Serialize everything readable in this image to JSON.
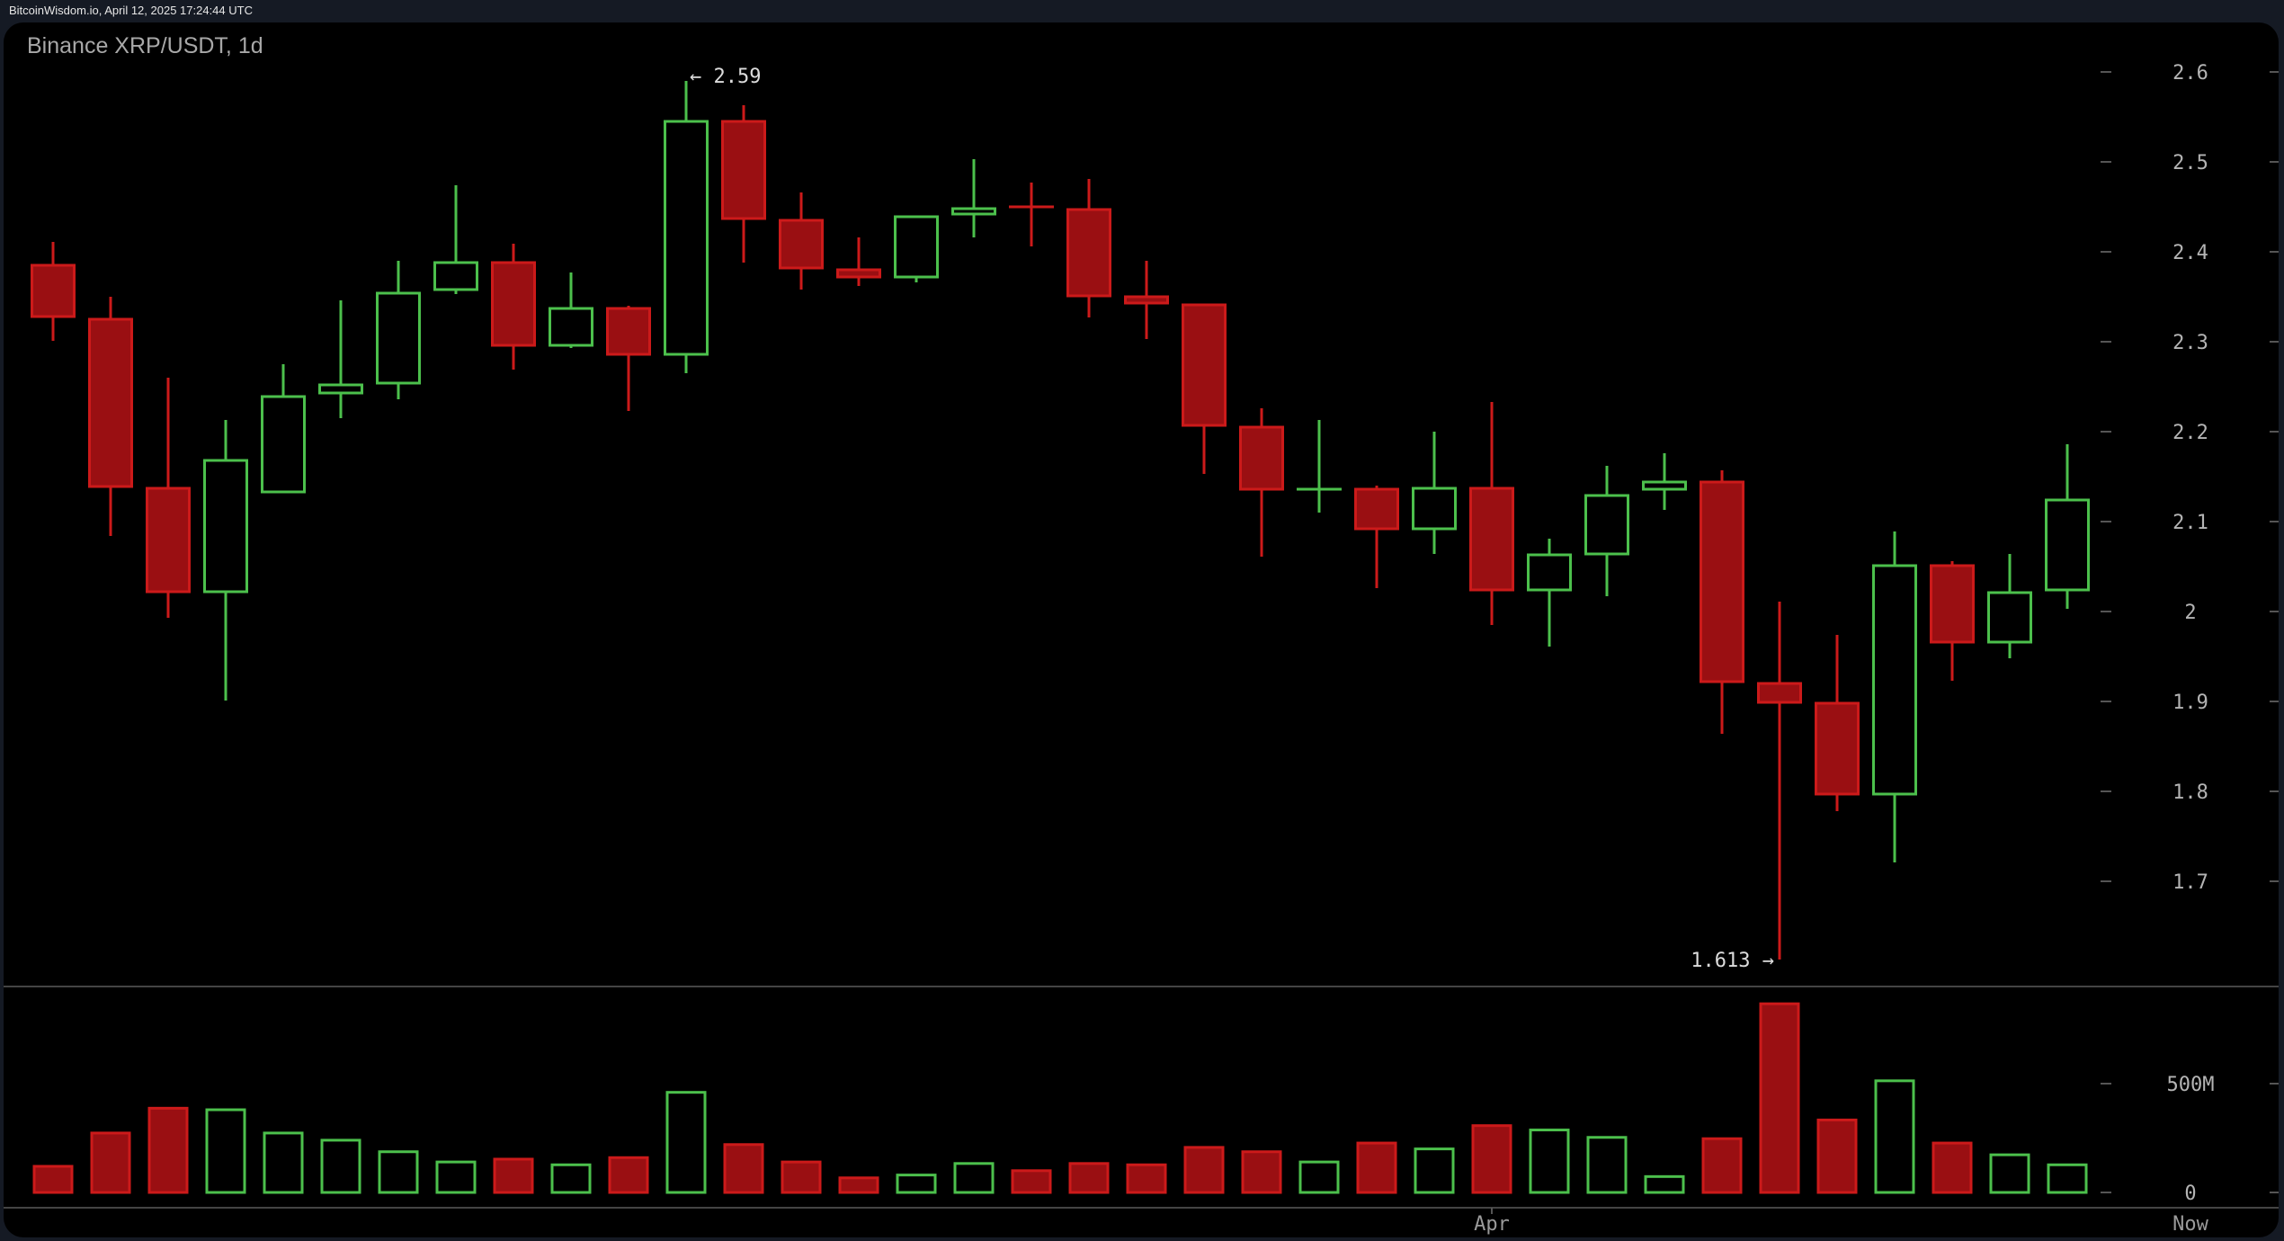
{
  "header": {
    "source_text": "BitcoinWisdom.io, April 12, 2025 17:24:44 UTC",
    "chart_title": "Binance XRP/USDT, 1d"
  },
  "colors": {
    "up": "#4cc04c",
    "down_fill": "#9a0f12",
    "down_stroke": "#cc1a1a",
    "axis_text": "#b4b4b4",
    "gridline": "#444444",
    "background": "#000000",
    "frame": "#151a24"
  },
  "annotations": {
    "high_label": "← 2.59",
    "low_label": "1.613 →"
  },
  "x_axis": {
    "labels": [
      {
        "text": "Apr",
        "candle_index": 25
      },
      {
        "text": "Now",
        "candle_index": 36
      }
    ]
  },
  "chart_data": {
    "type": "candlestick",
    "title": "Binance XRP/USDT, 1d",
    "xlabel": "",
    "ylabel": "",
    "ylim": [
      1.6,
      2.65
    ],
    "y_ticks": [
      "2.6",
      "2.5",
      "2.4",
      "2.3",
      "2.2",
      "2.1",
      "2",
      "1.9",
      "1.8",
      "1.7"
    ],
    "volume_ticks": [
      "500M",
      "0"
    ],
    "x_tick_labels": [
      "Apr",
      "Now"
    ],
    "annotations": [
      {
        "text": "← 2.59",
        "value": 2.59,
        "candle_index": 11
      },
      {
        "text": "1.613 →",
        "value": 1.613,
        "candle_index": 30
      }
    ],
    "candles": [
      {
        "o": 2.385,
        "h": 2.411,
        "l": 2.301,
        "c": 2.328
      },
      {
        "o": 2.325,
        "h": 2.35,
        "l": 2.084,
        "c": 2.139
      },
      {
        "o": 2.137,
        "h": 2.26,
        "l": 1.993,
        "c": 2.022
      },
      {
        "o": 2.022,
        "h": 2.213,
        "l": 1.901,
        "c": 2.168
      },
      {
        "o": 2.133,
        "h": 2.275,
        "l": 2.134,
        "c": 2.239
      },
      {
        "o": 2.243,
        "h": 2.346,
        "l": 2.215,
        "c": 2.252
      },
      {
        "o": 2.254,
        "h": 2.39,
        "l": 2.236,
        "c": 2.354
      },
      {
        "o": 2.358,
        "h": 2.474,
        "l": 2.353,
        "c": 2.388
      },
      {
        "o": 2.388,
        "h": 2.409,
        "l": 2.269,
        "c": 2.296
      },
      {
        "o": 2.296,
        "h": 2.377,
        "l": 2.293,
        "c": 2.337
      },
      {
        "o": 2.337,
        "h": 2.34,
        "l": 2.223,
        "c": 2.286
      },
      {
        "o": 2.286,
        "h": 2.59,
        "l": 2.265,
        "c": 2.545
      },
      {
        "o": 2.545,
        "h": 2.563,
        "l": 2.388,
        "c": 2.437
      },
      {
        "o": 2.435,
        "h": 2.466,
        "l": 2.358,
        "c": 2.382
      },
      {
        "o": 2.38,
        "h": 2.416,
        "l": 2.362,
        "c": 2.372
      },
      {
        "o": 2.372,
        "h": 2.439,
        "l": 2.366,
        "c": 2.439
      },
      {
        "o": 2.442,
        "h": 2.503,
        "l": 2.416,
        "c": 2.448
      },
      {
        "o": 2.45,
        "h": 2.477,
        "l": 2.406,
        "c": 2.449
      },
      {
        "o": 2.447,
        "h": 2.481,
        "l": 2.327,
        "c": 2.351
      },
      {
        "o": 2.35,
        "h": 2.39,
        "l": 2.303,
        "c": 2.343
      },
      {
        "o": 2.341,
        "h": 2.341,
        "l": 2.153,
        "c": 2.207
      },
      {
        "o": 2.205,
        "h": 2.226,
        "l": 2.061,
        "c": 2.136
      },
      {
        "o": 2.136,
        "h": 2.213,
        "l": 2.11,
        "c": 2.136
      },
      {
        "o": 2.136,
        "h": 2.14,
        "l": 2.026,
        "c": 2.092
      },
      {
        "o": 2.092,
        "h": 2.2,
        "l": 2.064,
        "c": 2.137
      },
      {
        "o": 2.137,
        "h": 2.233,
        "l": 1.985,
        "c": 2.024
      },
      {
        "o": 2.024,
        "h": 2.081,
        "l": 1.961,
        "c": 2.063
      },
      {
        "o": 2.064,
        "h": 2.162,
        "l": 2.017,
        "c": 2.129
      },
      {
        "o": 2.136,
        "h": 2.176,
        "l": 2.113,
        "c": 2.144
      },
      {
        "o": 2.144,
        "h": 2.157,
        "l": 1.864,
        "c": 1.922
      },
      {
        "o": 1.92,
        "h": 2.011,
        "l": 1.613,
        "c": 1.899
      },
      {
        "o": 1.898,
        "h": 1.974,
        "l": 1.778,
        "c": 1.797
      },
      {
        "o": 1.797,
        "h": 2.089,
        "l": 1.721,
        "c": 2.051
      },
      {
        "o": 2.051,
        "h": 2.056,
        "l": 1.923,
        "c": 1.966
      },
      {
        "o": 1.966,
        "h": 2.064,
        "l": 1.948,
        "c": 2.021
      },
      {
        "o": 2.024,
        "h": 2.186,
        "l": 2.003,
        "c": 2.124
      }
    ],
    "volume_unit": "M",
    "volumes": [
      120,
      273,
      387,
      380,
      273,
      240,
      187,
      140,
      153,
      127,
      160,
      460,
      220,
      140,
      67,
      80,
      133,
      100,
      133,
      127,
      207,
      187,
      140,
      227,
      200,
      307,
      287,
      253,
      73,
      247,
      867,
      333,
      513,
      227,
      173,
      127
    ]
  }
}
